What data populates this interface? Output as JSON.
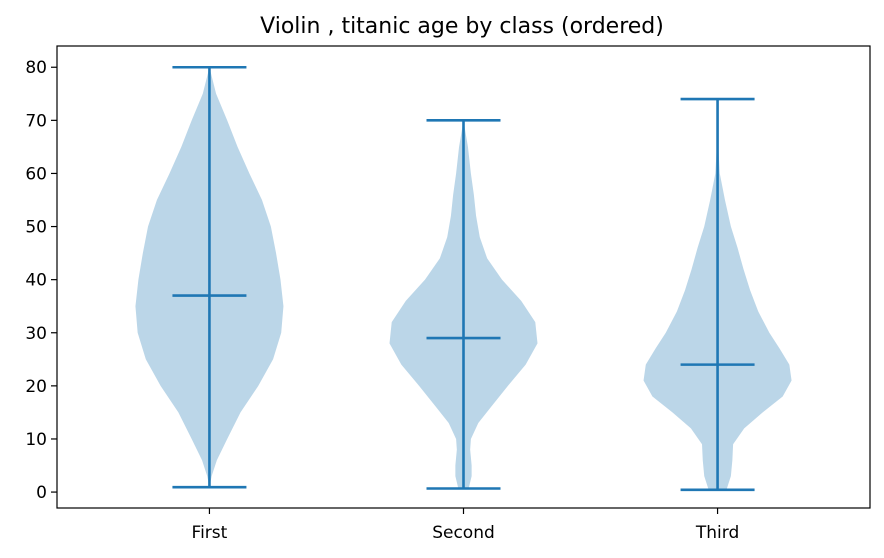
{
  "chart_data": {
    "type": "violin",
    "title": "Violin , titanic age by class (ordered)",
    "xlabel": "",
    "ylabel": "",
    "categories": [
      "First",
      "Second",
      "Third"
    ],
    "ylim": [
      -3,
      84
    ],
    "yticks": [
      0,
      10,
      20,
      30,
      40,
      50,
      60,
      70,
      80
    ],
    "grid": false,
    "colors": {
      "fill": "#1f77b4",
      "fill_opacity": 0.3,
      "line": "#1f77b4"
    },
    "series": [
      {
        "category": "First",
        "min": 0.92,
        "median": 37,
        "max": 80,
        "density": [
          [
            0.92,
            0.0
          ],
          [
            3,
            0.03
          ],
          [
            6,
            0.1
          ],
          [
            10,
            0.24
          ],
          [
            15,
            0.42
          ],
          [
            20,
            0.66
          ],
          [
            25,
            0.86
          ],
          [
            30,
            0.97
          ],
          [
            35,
            1.0
          ],
          [
            40,
            0.96
          ],
          [
            45,
            0.9
          ],
          [
            50,
            0.83
          ],
          [
            55,
            0.71
          ],
          [
            60,
            0.54
          ],
          [
            65,
            0.38
          ],
          [
            70,
            0.24
          ],
          [
            75,
            0.09
          ],
          [
            80,
            0.0
          ]
        ]
      },
      {
        "category": "Second",
        "min": 0.67,
        "median": 29,
        "max": 70,
        "density": [
          [
            0.67,
            0.07
          ],
          [
            3,
            0.11
          ],
          [
            5,
            0.11
          ],
          [
            8,
            0.09
          ],
          [
            10,
            0.1
          ],
          [
            13,
            0.2
          ],
          [
            16,
            0.37
          ],
          [
            20,
            0.6
          ],
          [
            24,
            0.84
          ],
          [
            28,
            1.0
          ],
          [
            32,
            0.97
          ],
          [
            36,
            0.78
          ],
          [
            40,
            0.52
          ],
          [
            44,
            0.32
          ],
          [
            48,
            0.22
          ],
          [
            52,
            0.17
          ],
          [
            56,
            0.14
          ],
          [
            60,
            0.1
          ],
          [
            65,
            0.06
          ],
          [
            70,
            0.0
          ]
        ]
      },
      {
        "category": "Third",
        "min": 0.42,
        "median": 24,
        "max": 74,
        "density": [
          [
            0.42,
            0.12
          ],
          [
            3,
            0.18
          ],
          [
            6,
            0.2
          ],
          [
            9,
            0.21
          ],
          [
            12,
            0.36
          ],
          [
            15,
            0.61
          ],
          [
            18,
            0.88
          ],
          [
            21,
            1.0
          ],
          [
            24,
            0.97
          ],
          [
            27,
            0.84
          ],
          [
            30,
            0.7
          ],
          [
            34,
            0.55
          ],
          [
            38,
            0.44
          ],
          [
            42,
            0.35
          ],
          [
            46,
            0.27
          ],
          [
            50,
            0.18
          ],
          [
            55,
            0.1
          ],
          [
            60,
            0.03
          ],
          [
            65,
            0.01
          ],
          [
            74,
            0.0
          ]
        ]
      }
    ]
  }
}
